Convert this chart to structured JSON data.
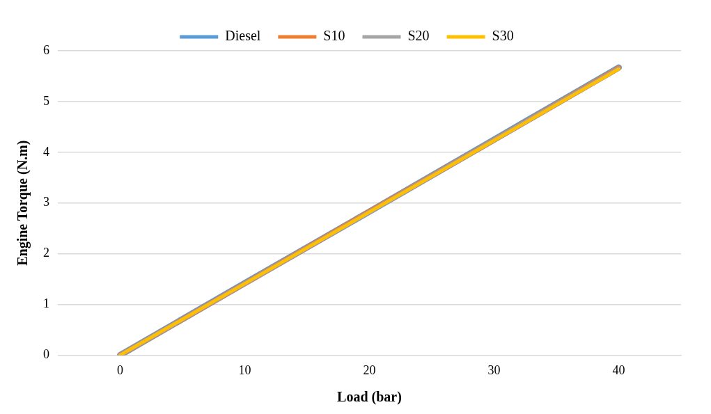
{
  "chart_data": {
    "type": "line",
    "xlabel": "Load (bar)",
    "ylabel": "Engine Torque (N.m)",
    "categories": [
      "0",
      "10",
      "20",
      "30",
      "40"
    ],
    "series": [
      {
        "name": "Diesel",
        "color": "#5b9bd5",
        "values": [
          0,
          1.42,
          2.83,
          4.25,
          5.67
        ]
      },
      {
        "name": "S10",
        "color": "#ed7d31",
        "values": [
          0,
          1.41,
          2.83,
          4.24,
          5.66
        ]
      },
      {
        "name": "S20",
        "color": "#a5a5a5",
        "values": [
          0,
          1.41,
          2.82,
          4.24,
          5.65
        ]
      },
      {
        "name": "S30",
        "color": "#ffc000",
        "values": [
          0,
          1.41,
          2.82,
          4.23,
          5.64
        ]
      }
    ],
    "ylim": [
      0,
      6
    ],
    "yticks": [
      0,
      1,
      2,
      3,
      4,
      5,
      6
    ],
    "grid": "y",
    "legend": "top",
    "marker": "none",
    "line_style": "solid"
  }
}
